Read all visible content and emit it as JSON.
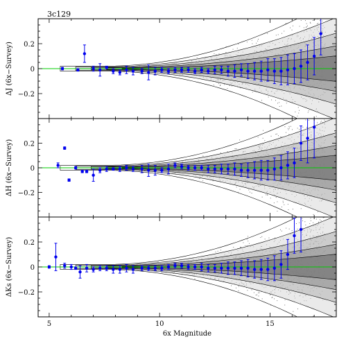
{
  "figure": {
    "title": "3c129",
    "xlabel": "6x Magnitude"
  },
  "chart_data": [
    {
      "type": "scatter",
      "ylabel": "ΔJ (6x−Survey)",
      "xlim": [
        4.5,
        18
      ],
      "ylim": [
        -0.4,
        0.4
      ],
      "xticks": [
        5,
        10,
        15
      ],
      "yticks": [
        -0.2,
        0,
        0.2
      ],
      "ytick_labels": [
        "−0.2",
        "0",
        "0.2"
      ],
      "reference_line": 0,
      "colors": {
        "points": "#0000ee",
        "reference": "#00cc00",
        "contours": "#000000"
      },
      "series": [
        {
          "x": [
            5.6,
            6.3,
            6.6,
            7.0,
            7.3,
            7.6,
            7.9,
            8.2,
            8.5,
            8.8,
            9.2,
            9.5,
            9.8,
            10.1,
            10.4,
            10.7,
            11.0,
            11.3,
            11.6,
            11.9,
            12.2,
            12.5,
            12.8,
            13.1,
            13.4,
            13.7,
            14.0,
            14.3,
            14.6,
            14.9,
            15.2,
            15.5,
            15.8,
            16.1,
            16.4,
            16.7,
            17.0,
            17.3
          ],
          "y": [
            0.0,
            -0.01,
            0.12,
            0.0,
            -0.01,
            0.01,
            -0.02,
            -0.03,
            -0.01,
            -0.02,
            -0.02,
            -0.03,
            -0.02,
            -0.01,
            -0.02,
            -0.01,
            -0.01,
            -0.01,
            -0.02,
            -0.01,
            -0.02,
            -0.01,
            -0.01,
            -0.02,
            -0.02,
            -0.01,
            -0.02,
            -0.02,
            -0.02,
            -0.01,
            -0.02,
            -0.02,
            -0.01,
            0.0,
            0.02,
            0.05,
            0.1,
            0.28
          ],
          "err": [
            0.01,
            0.01,
            0.07,
            0.02,
            0.05,
            0.01,
            0.02,
            0.02,
            0.03,
            0.03,
            0.02,
            0.06,
            0.03,
            0.02,
            0.02,
            0.02,
            0.02,
            0.02,
            0.02,
            0.02,
            0.02,
            0.03,
            0.03,
            0.04,
            0.05,
            0.05,
            0.06,
            0.07,
            0.08,
            0.09,
            0.1,
            0.11,
            0.12,
            0.12,
            0.13,
            0.14,
            0.15,
            0.17
          ]
        }
      ]
    },
    {
      "type": "scatter",
      "ylabel": "ΔH (6x−Survey)",
      "xlim": [
        4.5,
        18
      ],
      "ylim": [
        -0.4,
        0.4
      ],
      "xticks": [
        5,
        10,
        15
      ],
      "yticks": [
        -0.2,
        0,
        0.2
      ],
      "ytick_labels": [
        "−0.2",
        "0",
        "0.2"
      ],
      "reference_line": 0,
      "colors": {
        "points": "#0000ee",
        "reference": "#00cc00",
        "contours": "#000000"
      },
      "series": [
        {
          "x": [
            5.4,
            5.7,
            5.9,
            6.2,
            6.5,
            6.7,
            7.0,
            7.3,
            7.6,
            7.9,
            8.2,
            8.5,
            8.8,
            9.2,
            9.5,
            9.8,
            10.1,
            10.4,
            10.7,
            11.0,
            11.3,
            11.6,
            11.9,
            12.2,
            12.5,
            12.8,
            13.1,
            13.4,
            13.7,
            14.0,
            14.3,
            14.6,
            14.9,
            15.2,
            15.5,
            15.8,
            16.1,
            16.4,
            16.7,
            17.0
          ],
          "y": [
            0.02,
            0.16,
            -0.1,
            0.0,
            -0.03,
            -0.03,
            -0.06,
            -0.02,
            -0.01,
            -0.01,
            -0.01,
            0.0,
            -0.01,
            -0.01,
            -0.02,
            -0.02,
            -0.02,
            -0.01,
            0.02,
            0.01,
            0.0,
            0.0,
            0.0,
            -0.01,
            -0.01,
            -0.01,
            -0.01,
            -0.01,
            -0.02,
            -0.02,
            -0.02,
            -0.02,
            -0.02,
            -0.01,
            0.0,
            0.02,
            0.04,
            0.2,
            0.24,
            0.33
          ],
          "err": [
            0.02,
            0.01,
            0.01,
            0.01,
            0.01,
            0.01,
            0.05,
            0.02,
            0.02,
            0.01,
            0.02,
            0.02,
            0.02,
            0.03,
            0.05,
            0.04,
            0.02,
            0.04,
            0.02,
            0.02,
            0.02,
            0.02,
            0.02,
            0.03,
            0.03,
            0.04,
            0.04,
            0.05,
            0.05,
            0.06,
            0.07,
            0.08,
            0.08,
            0.09,
            0.1,
            0.11,
            0.12,
            0.14,
            0.2,
            0.25
          ]
        }
      ]
    },
    {
      "type": "scatter",
      "ylabel": "ΔKs (6x−Survey)",
      "xlim": [
        4.5,
        18
      ],
      "ylim": [
        -0.4,
        0.4
      ],
      "xticks": [
        5,
        10,
        15
      ],
      "yticks": [
        -0.2,
        0,
        0.2
      ],
      "ytick_labels": [
        "−0.2",
        "0",
        "0.2"
      ],
      "reference_line": 0,
      "colors": {
        "points": "#0000ee",
        "reference": "#00cc00",
        "contours": "#000000"
      },
      "series": [
        {
          "x": [
            5.0,
            5.3,
            5.7,
            6.0,
            6.2,
            6.4,
            6.7,
            7.0,
            7.3,
            7.6,
            7.9,
            8.2,
            8.5,
            8.8,
            9.2,
            9.5,
            9.8,
            10.1,
            10.4,
            10.7,
            11.0,
            11.3,
            11.6,
            11.9,
            12.2,
            12.5,
            12.8,
            13.1,
            13.4,
            13.7,
            14.0,
            14.3,
            14.6,
            14.9,
            15.2,
            15.5,
            15.8,
            16.1,
            16.4
          ],
          "y": [
            0.0,
            0.08,
            0.01,
            0.0,
            -0.01,
            -0.04,
            -0.01,
            -0.02,
            -0.01,
            -0.01,
            -0.02,
            -0.02,
            -0.01,
            -0.02,
            -0.01,
            -0.01,
            -0.01,
            -0.01,
            0.0,
            0.01,
            0.01,
            0.0,
            0.0,
            0.0,
            -0.01,
            -0.01,
            -0.01,
            -0.01,
            -0.01,
            -0.01,
            -0.01,
            -0.02,
            -0.02,
            -0.02,
            -0.01,
            0.02,
            0.1,
            0.25,
            0.3
          ],
          "err": [
            0.01,
            0.11,
            0.02,
            0.02,
            0.01,
            0.05,
            0.03,
            0.02,
            0.02,
            0.02,
            0.03,
            0.03,
            0.03,
            0.03,
            0.02,
            0.02,
            0.02,
            0.02,
            0.02,
            0.02,
            0.02,
            0.02,
            0.02,
            0.03,
            0.03,
            0.03,
            0.04,
            0.05,
            0.05,
            0.06,
            0.07,
            0.07,
            0.08,
            0.09,
            0.1,
            0.11,
            0.12,
            0.14,
            0.18
          ]
        }
      ]
    }
  ]
}
